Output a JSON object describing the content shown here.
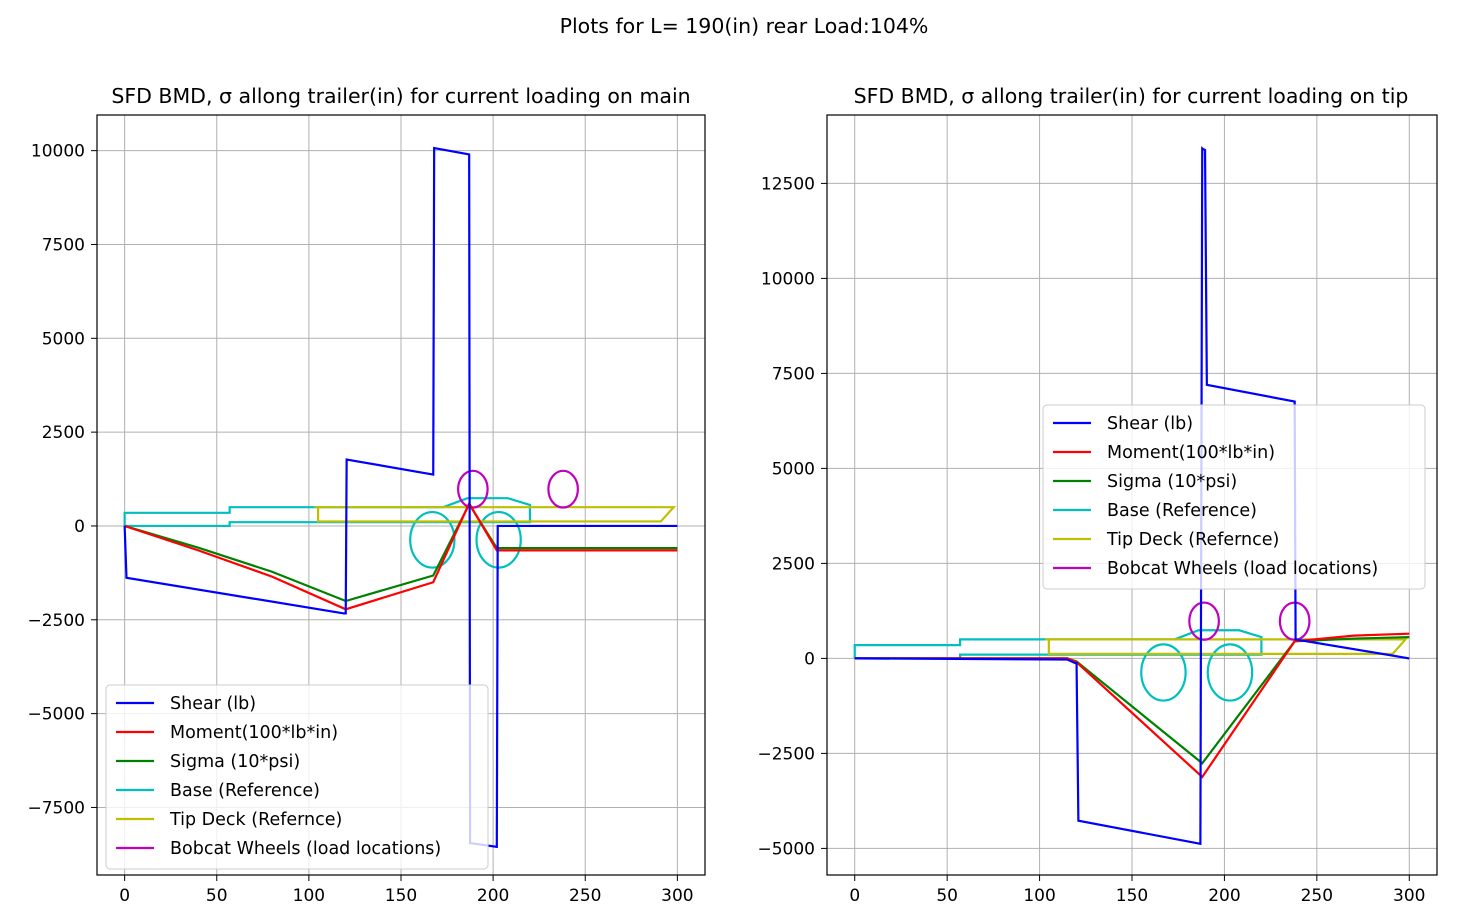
{
  "figure": {
    "suptitle": "Plots for L= 190(in) rear Load:104%"
  },
  "series_meta": [
    {
      "key": "shear",
      "name": "Shear (lb)",
      "color": "#0000ff"
    },
    {
      "key": "moment",
      "name": "Moment(100*lb*in)",
      "color": "#ff0000"
    },
    {
      "key": "sigma",
      "name": "Sigma (10*psi)",
      "color": "#008000"
    },
    {
      "key": "base",
      "name": "Base (Reference)",
      "color": "#00bfbf"
    },
    {
      "key": "tip",
      "name": "Tip Deck (Refernce)",
      "color": "#bfbf00"
    },
    {
      "key": "wheels",
      "name": "Bobcat Wheels (load locations)",
      "color": "#bf00bf"
    }
  ],
  "chart_data": [
    {
      "type": "line",
      "title": "SFD BMD, σ allong trailer(in) for current loading on main",
      "xlabel": "",
      "ylabel": "",
      "grid": true,
      "legend": "lower-left",
      "xlim": [
        -15,
        315
      ],
      "ylim": [
        -9300,
        10950
      ],
      "xticks": [
        0,
        50,
        100,
        150,
        200,
        250,
        300
      ],
      "yticks": [
        -7500,
        -5000,
        -2500,
        0,
        2500,
        5000,
        7500,
        10000
      ],
      "series": [
        {
          "key": "shear",
          "name": "Shear (lb)",
          "x": [
            0,
            1,
            119,
            120,
            120.5,
            167.5,
            168,
            187,
            187.5,
            202,
            202.5,
            300
          ],
          "y": [
            0,
            -1380,
            -2330,
            -2330,
            1770,
            1370,
            10070,
            9900,
            -8450,
            -8550,
            0,
            0
          ]
        },
        {
          "key": "moment",
          "name": "Moment(100*lb*in)",
          "x": [
            0,
            40,
            80,
            120,
            167.5,
            187,
            202,
            300
          ],
          "y": [
            0,
            -650,
            -1350,
            -2220,
            -1500,
            600,
            -650,
            -650
          ]
        },
        {
          "key": "sigma",
          "name": "Sigma (10*psi)",
          "x": [
            0,
            40,
            80,
            120,
            167.5,
            187,
            202,
            300
          ],
          "y": [
            0,
            -580,
            -1220,
            -2000,
            -1320,
            580,
            -590,
            -590
          ]
        },
        {
          "key": "base",
          "name": "Base (Reference)",
          "x": [
            0,
            0,
            57,
            57,
            103,
            173,
            186,
            208,
            220,
            220,
            57,
            57,
            0,
            null,
            115,
            127
          ],
          "y": [
            0,
            350,
            350,
            500,
            500,
            500,
            740,
            740,
            560,
            100,
            100,
            0,
            0,
            null,
            100,
            100
          ]
        },
        {
          "key": "tip",
          "name": "Tip Deck (Refernce)",
          "x": [
            103,
            298,
            291,
            105,
            105,
            103
          ],
          "y": [
            500,
            500,
            120,
            120,
            500,
            500
          ]
        },
        {
          "key": "wheels",
          "name": "Bobcat Wheels (load locations)",
          "ellipses": [
            {
              "cx": 189,
              "cy": 980,
              "rx": 8,
              "ry": 490
            },
            {
              "cx": 238,
              "cy": 980,
              "rx": 8,
              "ry": 490
            }
          ]
        },
        {
          "key": "base_wheels",
          "name": "",
          "ellipses": [
            {
              "cx": 167,
              "cy": -370,
              "rx": 12,
              "ry": 740
            },
            {
              "cx": 203,
              "cy": -370,
              "rx": 12,
              "ry": 740
            }
          ]
        }
      ]
    },
    {
      "type": "line",
      "title": "SFD BMD, σ allong trailer(in) for current loading on tip",
      "xlabel": "",
      "ylabel": "",
      "grid": true,
      "legend": "center-right",
      "xlim": [
        -15,
        315
      ],
      "ylim": [
        -5700,
        14300
      ],
      "xticks": [
        0,
        50,
        100,
        150,
        200,
        250,
        300
      ],
      "yticks": [
        -5000,
        -2500,
        0,
        2500,
        5000,
        7500,
        10000,
        12500
      ],
      "series": [
        {
          "key": "shear",
          "name": "Shear (lb)",
          "x": [
            0,
            115,
            119,
            120,
            121,
            187,
            188,
            188.5,
            189.5,
            190.5,
            238,
            238.5,
            300
          ],
          "y": [
            0,
            -30,
            -120,
            -120,
            -4270,
            -4880,
            13420,
            13400,
            13380,
            7200,
            6760,
            500,
            0
          ]
        },
        {
          "key": "moment",
          "name": "Moment(100*lb*in)",
          "x": [
            0,
            115,
            120,
            188,
            238,
            270,
            300
          ],
          "y": [
            0,
            0,
            -100,
            -3120,
            450,
            600,
            650
          ]
        },
        {
          "key": "sigma",
          "name": "Sigma (10*psi)",
          "x": [
            0,
            115,
            120,
            188,
            238,
            270,
            300
          ],
          "y": [
            0,
            0,
            -80,
            -2760,
            450,
            520,
            560
          ]
        },
        {
          "key": "base",
          "name": "Base (Reference)",
          "x": [
            0,
            0,
            57,
            57,
            103,
            173,
            186,
            208,
            220,
            220,
            57,
            57,
            0,
            null,
            115,
            127
          ],
          "y": [
            0,
            350,
            350,
            500,
            500,
            500,
            740,
            740,
            560,
            100,
            100,
            0,
            0,
            null,
            100,
            100
          ]
        },
        {
          "key": "tip",
          "name": "Tip Deck (Refernce)",
          "x": [
            103,
            298,
            291,
            105,
            105,
            103
          ],
          "y": [
            500,
            500,
            120,
            120,
            500,
            500
          ]
        },
        {
          "key": "wheels",
          "name": "Bobcat Wheels (load locations)",
          "ellipses": [
            {
              "cx": 189,
              "cy": 980,
              "rx": 8,
              "ry": 490
            },
            {
              "cx": 238,
              "cy": 980,
              "rx": 8,
              "ry": 490
            }
          ]
        },
        {
          "key": "base_wheels",
          "name": "",
          "ellipses": [
            {
              "cx": 167,
              "cy": -370,
              "rx": 12,
              "ry": 740
            },
            {
              "cx": 203,
              "cy": -370,
              "rx": 12,
              "ry": 740
            }
          ]
        }
      ]
    }
  ]
}
